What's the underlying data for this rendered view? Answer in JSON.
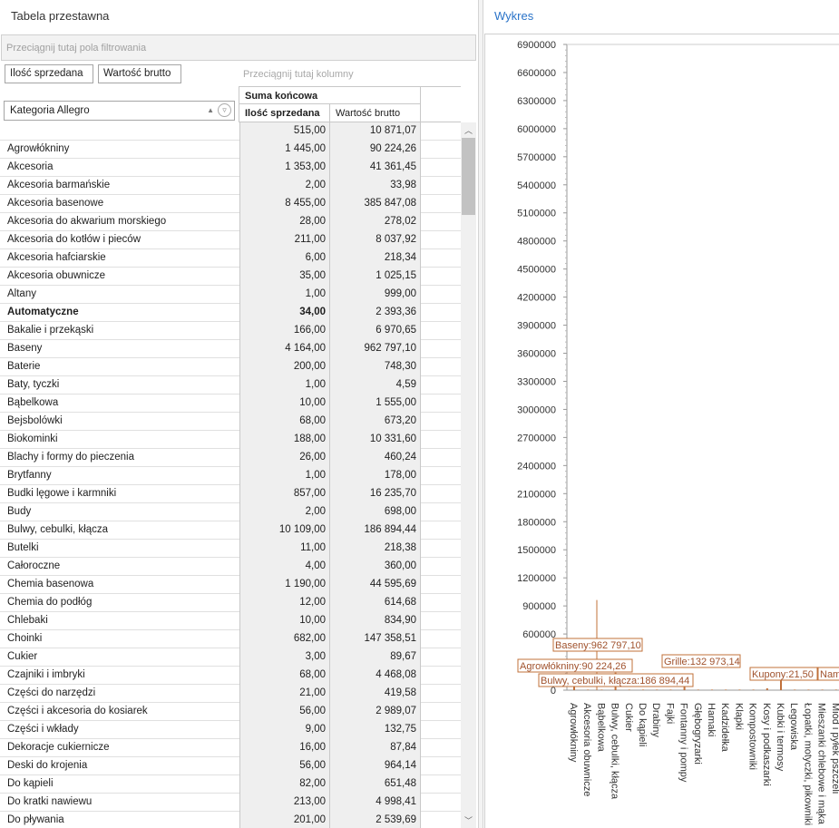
{
  "left_panel": {
    "title": "Tabela przestawna",
    "filter_drop_hint": "Przeciągnij tutaj pola filtrowania",
    "column_drop_hint": "Przeciągnij tutaj kolumny",
    "data_fields": [
      "Ilość sprzedana",
      "Wartość brutto"
    ],
    "row_field": "Kategoria Allegro",
    "header": {
      "grand_total": "Suma końcowa",
      "col_qty": "Ilość sprzedana",
      "col_val": "Wartość brutto"
    },
    "rows": [
      {
        "cat": "",
        "qty": "515,00",
        "val": "10 871,07"
      },
      {
        "cat": "Agrowłókniny",
        "qty": "1 445,00",
        "val": "90 224,26"
      },
      {
        "cat": "Akcesoria",
        "qty": "1 353,00",
        "val": "41 361,45"
      },
      {
        "cat": "Akcesoria barmańskie",
        "qty": "2,00",
        "val": "33,98"
      },
      {
        "cat": "Akcesoria basenowe",
        "qty": "8 455,00",
        "val": "385 847,08"
      },
      {
        "cat": "Akcesoria do akwarium morskiego",
        "qty": "28,00",
        "val": "278,02"
      },
      {
        "cat": "Akcesoria do kotłów i pieców",
        "qty": "211,00",
        "val": "8 037,92"
      },
      {
        "cat": "Akcesoria hafciarskie",
        "qty": "6,00",
        "val": "218,34"
      },
      {
        "cat": "Akcesoria obuwnicze",
        "qty": "35,00",
        "val": "1 025,15"
      },
      {
        "cat": "Altany",
        "qty": "1,00",
        "val": "999,00"
      },
      {
        "cat": "Automatyczne",
        "qty": "34,00",
        "val": "2 393,36",
        "bold": true
      },
      {
        "cat": "Bakalie i przekąski",
        "qty": "166,00",
        "val": "6 970,65"
      },
      {
        "cat": "Baseny",
        "qty": "4 164,00",
        "val": "962 797,10"
      },
      {
        "cat": "Baterie",
        "qty": "200,00",
        "val": "748,30"
      },
      {
        "cat": "Baty, tyczki",
        "qty": "1,00",
        "val": "4,59"
      },
      {
        "cat": "Bąbelkowa",
        "qty": "10,00",
        "val": "1 555,00"
      },
      {
        "cat": "Bejsbolówki",
        "qty": "68,00",
        "val": "673,20"
      },
      {
        "cat": "Biokominki",
        "qty": "188,00",
        "val": "10 331,60"
      },
      {
        "cat": "Blachy i formy do pieczenia",
        "qty": "26,00",
        "val": "460,24"
      },
      {
        "cat": "Brytfanny",
        "qty": "1,00",
        "val": "178,00"
      },
      {
        "cat": "Budki lęgowe i karmniki",
        "qty": "857,00",
        "val": "16 235,70"
      },
      {
        "cat": "Budy",
        "qty": "2,00",
        "val": "698,00"
      },
      {
        "cat": "Bulwy, cebulki, kłącza",
        "qty": "10 109,00",
        "val": "186 894,44"
      },
      {
        "cat": "Butelki",
        "qty": "11,00",
        "val": "218,38"
      },
      {
        "cat": "Całoroczne",
        "qty": "4,00",
        "val": "360,00"
      },
      {
        "cat": "Chemia basenowa",
        "qty": "1 190,00",
        "val": "44 595,69"
      },
      {
        "cat": "Chemia do podłóg",
        "qty": "12,00",
        "val": "614,68"
      },
      {
        "cat": "Chlebaki",
        "qty": "10,00",
        "val": "834,90"
      },
      {
        "cat": "Choinki",
        "qty": "682,00",
        "val": "147 358,51"
      },
      {
        "cat": "Cukier",
        "qty": "3,00",
        "val": "89,67"
      },
      {
        "cat": "Czajniki i imbryki",
        "qty": "68,00",
        "val": "4 468,08"
      },
      {
        "cat": "Części do narzędzi",
        "qty": "21,00",
        "val": "419,58"
      },
      {
        "cat": "Części i akcesoria do kosiarek",
        "qty": "56,00",
        "val": "2 989,07"
      },
      {
        "cat": "Części i wkłady",
        "qty": "9,00",
        "val": "132,75"
      },
      {
        "cat": "Dekoracje cukiernicze",
        "qty": "16,00",
        "val": "87,84"
      },
      {
        "cat": "Deski do krojenia",
        "qty": "56,00",
        "val": "964,14"
      },
      {
        "cat": "Do kąpieli",
        "qty": "82,00",
        "val": "651,48"
      },
      {
        "cat": "Do kratki nawiewu",
        "qty": "213,00",
        "val": "4 998,41"
      },
      {
        "cat": "Do pływania",
        "qty": "201,00",
        "val": "2 539,69"
      }
    ]
  },
  "right_panel": {
    "title": "Wykres"
  },
  "chart_data": {
    "type": "bar",
    "ylim": [
      0,
      6900000
    ],
    "yticks": [
      0,
      300000,
      600000,
      900000,
      1200000,
      1500000,
      1800000,
      2100000,
      2400000,
      2700000,
      3000000,
      3300000,
      3600000,
      3900000,
      4200000,
      4500000,
      4800000,
      5100000,
      5400000,
      5700000,
      6000000,
      6300000,
      6600000,
      6900000
    ],
    "ytick_labels": [
      "0",
      "300000",
      "600000",
      "900000",
      "1200000",
      "1500000",
      "1800000",
      "2100000",
      "2400000",
      "2700000",
      "3000000",
      "3300000",
      "3600000",
      "3900000",
      "4200000",
      "4500000",
      "4800000",
      "5100000",
      "5400000",
      "5700000",
      "6000000",
      "6300000",
      "6600000",
      "6900000"
    ],
    "categories": [
      "Agrowłókniny",
      "Akcesoria obuwnicze",
      "Bąbelkowa",
      "Bulwy, cebulki, kłącza",
      "Cukier",
      "Do kąpieli",
      "Drabiny",
      "Fajki",
      "Fontanny i pompy",
      "Głębogryzarki",
      "Hamaki",
      "Kadzidełka",
      "Klapki",
      "Kompostowniki",
      "Kosy i podkaszarki",
      "Kubki i termosy",
      "Legowiska",
      "Łopatki, motyczki, pikowniki",
      "Mieszanki chlebowe i mąka",
      "Miód i pyłek pszczeli"
    ],
    "values": [
      90224.26,
      1025.15,
      1555.0,
      186894.44,
      89.67,
      651.48,
      5000,
      3000,
      40000,
      2000,
      4000,
      1000,
      1500,
      3000,
      20000,
      132973.14,
      5000,
      3000,
      2000,
      21.5
    ],
    "annotations": [
      {
        "text": "Baseny:962 797,10",
        "value": 962797.1
      },
      {
        "text": "Agrowłókniny:90 224,26",
        "value": 90224.26
      },
      {
        "text": "Bulwy, cebulki, kłącza:186 894,44",
        "value": 186894.44
      },
      {
        "text": "Grille:132 973,14",
        "value": 132973.14
      },
      {
        "text": "Kupony:21,50",
        "value": 21.5
      },
      {
        "text": "Nam",
        "value": 0
      }
    ],
    "colors": {
      "bar": "#c0703a",
      "label_border": "#c0703a",
      "label_text": "#a0522d"
    }
  }
}
